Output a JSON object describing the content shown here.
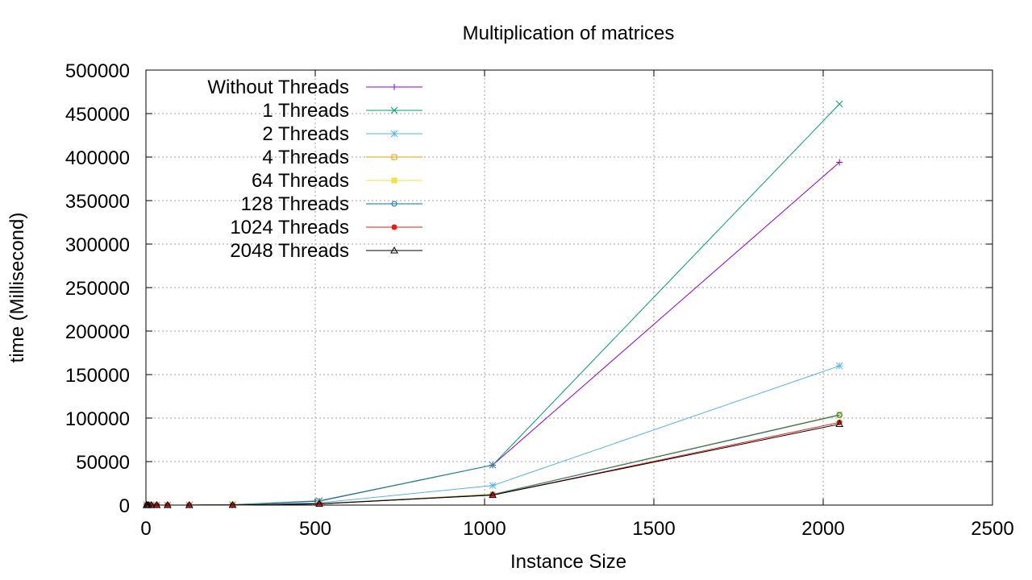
{
  "chart_data": {
    "type": "line",
    "title": "Multiplication of matrices",
    "xlabel": "Instance Size",
    "ylabel": "time (Millisecond)",
    "xlim": [
      0,
      2500
    ],
    "ylim": [
      0,
      500000
    ],
    "xticks": [
      0,
      500,
      1000,
      1500,
      2000,
      2500
    ],
    "yticks": [
      0,
      50000,
      100000,
      150000,
      200000,
      250000,
      300000,
      350000,
      400000,
      450000,
      500000
    ],
    "grid": true,
    "legend_position": "top-left",
    "x": [
      2,
      4,
      8,
      16,
      32,
      64,
      128,
      256,
      512,
      1024,
      2048
    ],
    "series": [
      {
        "name": "Without Threads",
        "color": "#9400d3",
        "marker": "plus",
        "values": [
          0,
          0,
          0,
          0,
          0,
          0,
          30,
          400,
          4500,
          46000,
          394000
        ]
      },
      {
        "name": "1 Threads",
        "color": "#009e73",
        "marker": "cross",
        "values": [
          0,
          0,
          0,
          0,
          0,
          0,
          30,
          450,
          5000,
          46000,
          461000
        ]
      },
      {
        "name": "2 Threads",
        "color": "#56b4e9",
        "marker": "star",
        "values": [
          0,
          0,
          0,
          0,
          0,
          0,
          20,
          250,
          2500,
          22500,
          160000
        ]
      },
      {
        "name": "4 Threads",
        "color": "#e69f00",
        "marker": "square-open",
        "values": [
          0,
          0,
          0,
          0,
          0,
          0,
          15,
          150,
          1500,
          12500,
          104000
        ]
      },
      {
        "name": "64 Threads",
        "color": "#f0e442",
        "marker": "square-filled",
        "values": [
          0,
          0,
          0,
          0,
          0,
          0,
          15,
          150,
          1500,
          12500,
          103000
        ]
      },
      {
        "name": "128 Threads",
        "color": "#0072b2",
        "marker": "circle-open",
        "values": [
          0,
          0,
          0,
          0,
          0,
          0,
          15,
          150,
          1500,
          12000,
          103500
        ]
      },
      {
        "name": "1024 Threads",
        "color": "#e51e10",
        "marker": "circle-filled",
        "values": [
          0,
          0,
          0,
          0,
          0,
          0,
          15,
          150,
          1400,
          11500,
          95000
        ]
      },
      {
        "name": "2048 Threads",
        "color": "#000000",
        "marker": "triangle-open",
        "values": [
          0,
          0,
          0,
          0,
          0,
          0,
          15,
          150,
          1400,
          11500,
          93000
        ]
      }
    ]
  }
}
